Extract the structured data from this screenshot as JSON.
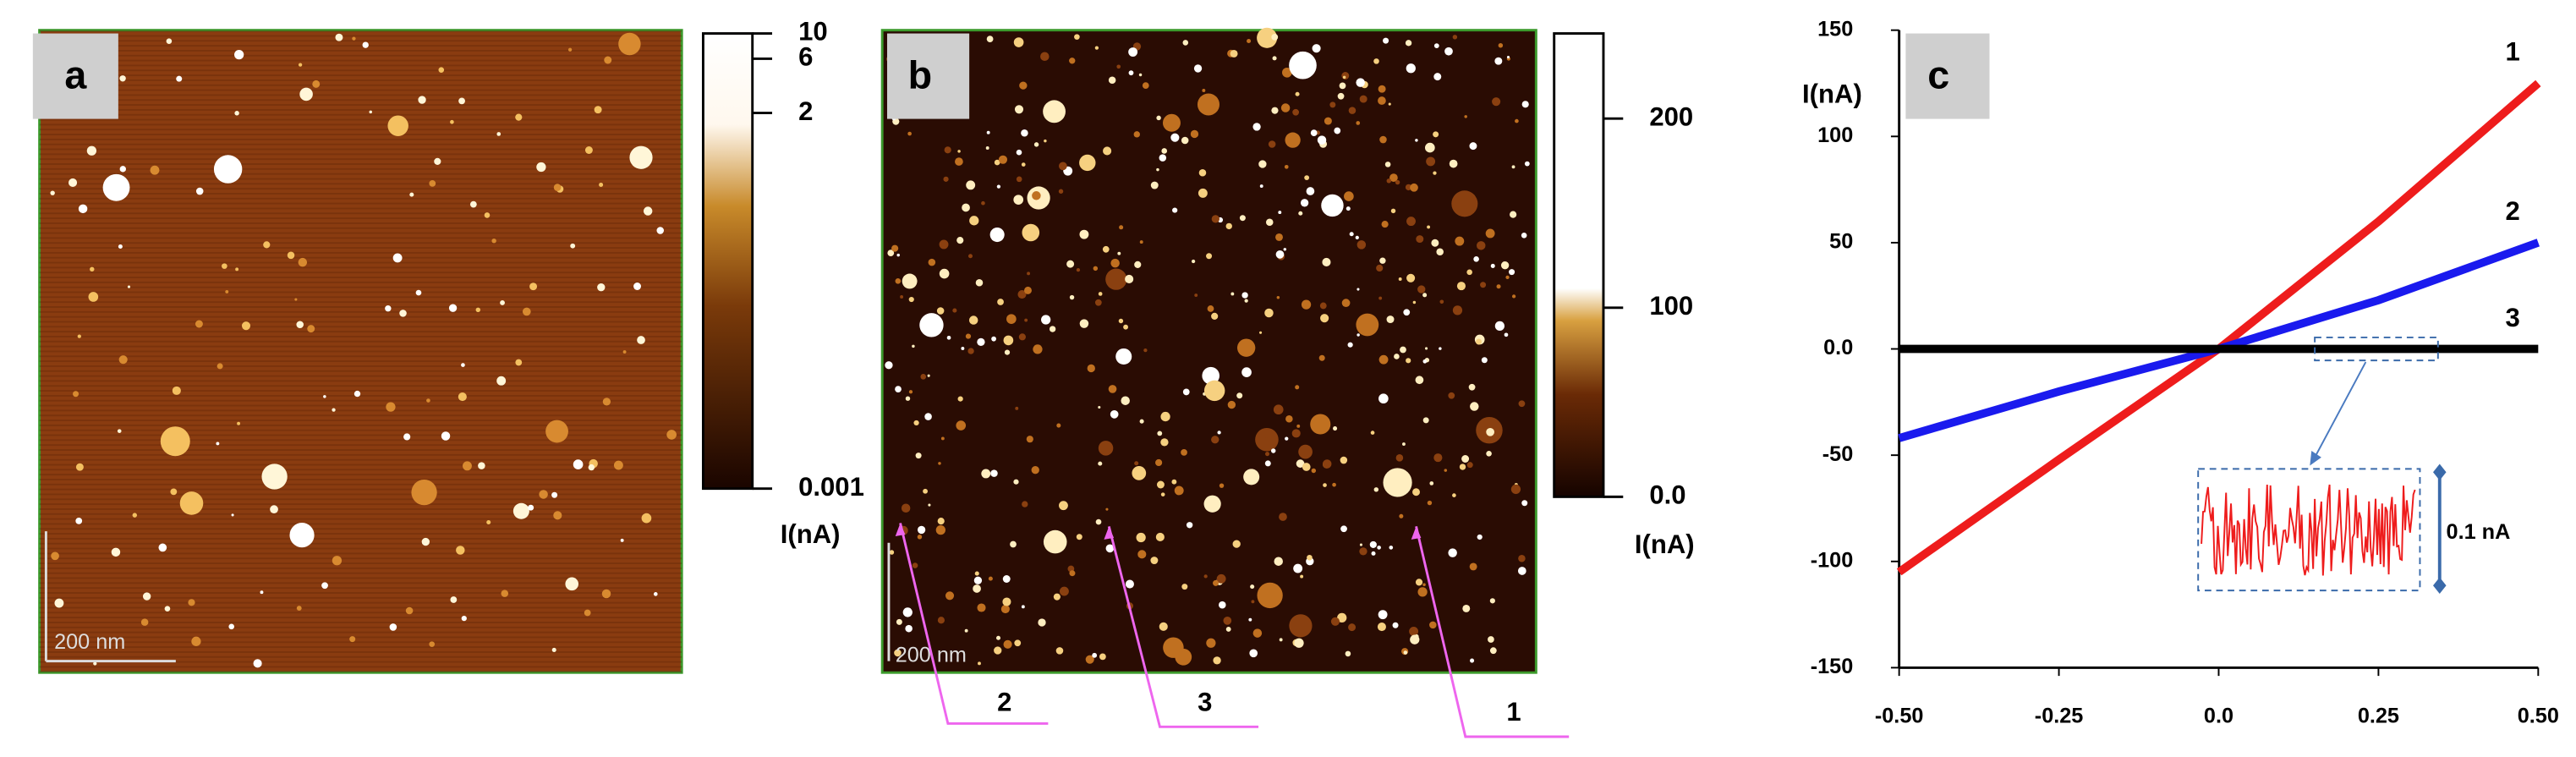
{
  "panels": {
    "a": {
      "label": "a",
      "scale_bar": "200 nm",
      "colorbar": {
        "title": "I(nA)",
        "scale": "log",
        "lim": [
          0.001,
          10
        ],
        "ticks": [
          10,
          6,
          2,
          0.001
        ]
      }
    },
    "b": {
      "label": "b",
      "scale_bar": "200 nm",
      "colorbar": {
        "title": "I(nA)",
        "scale": "linear",
        "lim": [
          0,
          245
        ],
        "ticks": [
          {
            "value": 0,
            "label": "0.0"
          },
          100,
          200
        ]
      },
      "arrows": [
        "2",
        "3",
        "1"
      ]
    }
  },
  "chart_data": {
    "type": "line",
    "label": "c",
    "ylabel": "I(nA)",
    "x": [
      -0.5,
      -0.25,
      0,
      0.25,
      0.5
    ],
    "series": [
      {
        "name": "1",
        "color": "#ee1c1c",
        "values": [
          -105,
          -52,
          0,
          60,
          125
        ]
      },
      {
        "name": "2",
        "color": "#1a1aee",
        "values": [
          -42,
          -20,
          0,
          23,
          50
        ]
      },
      {
        "name": "3",
        "color": "#000000",
        "values": [
          0,
          0,
          0,
          0,
          0
        ]
      }
    ],
    "xlim": [
      -0.5,
      0.5
    ],
    "xticks": [
      {
        "value": -0.5,
        "label": "-0.50"
      },
      {
        "value": -0.25,
        "label": "-0.25"
      },
      {
        "value": 0,
        "label": "0.0"
      },
      {
        "value": 0.25,
        "label": "0.25"
      },
      {
        "value": 0.5,
        "label": "0.50"
      }
    ],
    "ylim": [
      -150,
      150
    ],
    "yticks": [
      -150,
      -100,
      -50,
      {
        "value": 0,
        "label": "0.0"
      },
      50,
      100,
      150
    ],
    "inset_label": "0.1 nA"
  }
}
